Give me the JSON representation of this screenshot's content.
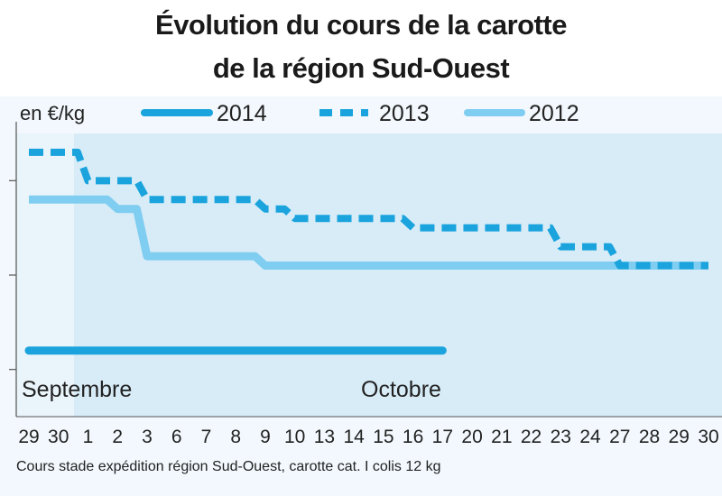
{
  "chart_data": {
    "type": "line",
    "title_line1": "Évolution du cours de la carotte",
    "title_line2": "de la région Sud-Ouest",
    "unit_label": "en €/kg",
    "source": "Cours stade expédition région Sud-Ouest, carotte cat. I colis 12 kg",
    "month_labels": {
      "september": "Septembre",
      "october": "Octobre"
    },
    "categories": [
      "29",
      "30",
      "1",
      "2",
      "3",
      "6",
      "7",
      "8",
      "9",
      "10",
      "13",
      "14",
      "15",
      "16",
      "17",
      "20",
      "21",
      "22",
      "23",
      "24",
      "27",
      "28",
      "29",
      "30"
    ],
    "ylim": [
      0.15,
      0.45
    ],
    "grid": false,
    "legend_position": "top",
    "series": [
      {
        "name": "2014",
        "style": "solid-thick",
        "color": "#1aa3dc",
        "values": [
          0.22,
          0.22,
          0.22,
          0.22,
          0.22,
          0.22,
          0.22,
          0.22,
          0.22,
          0.22,
          0.22,
          0.22,
          0.22,
          0.22,
          0.22,
          null,
          null,
          null,
          null,
          null,
          null,
          null,
          null,
          null
        ]
      },
      {
        "name": "2013",
        "style": "dashed",
        "color": "#1aa3dc",
        "values": [
          0.43,
          0.43,
          0.4,
          0.4,
          0.38,
          0.38,
          0.38,
          0.38,
          0.37,
          0.36,
          0.36,
          0.36,
          0.36,
          0.35,
          0.35,
          0.35,
          0.35,
          0.35,
          0.33,
          0.33,
          0.31,
          0.31,
          0.31,
          0.31
        ]
      },
      {
        "name": "2012",
        "style": "solid-light",
        "color": "#7fcdf0",
        "values": [
          0.38,
          0.38,
          0.38,
          0.37,
          0.32,
          0.32,
          0.32,
          0.32,
          0.31,
          0.31,
          0.31,
          0.31,
          0.31,
          0.31,
          0.31,
          0.31,
          0.31,
          0.31,
          0.31,
          0.31,
          0.31,
          0.31,
          0.31,
          0.31
        ]
      }
    ]
  }
}
